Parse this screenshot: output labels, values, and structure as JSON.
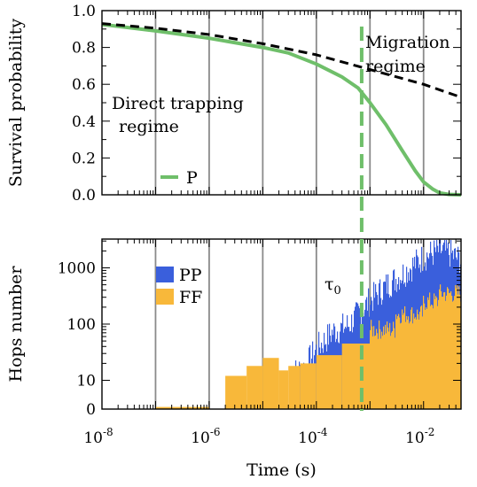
{
  "chart_data": [
    {
      "type": "line",
      "ylabel": "Survival probability",
      "xscale": "log",
      "xlim": [
        1e-08,
        0.05
      ],
      "ylim": [
        0,
        1
      ],
      "yticks": [
        "0.0",
        "0.2",
        "0.4",
        "0.6",
        "0.8",
        "1.0"
      ],
      "grid": "vertical lines at decades",
      "series": [
        {
          "name": "P",
          "color": "#6fbf6a",
          "style": "solid",
          "x": [
            1e-08,
            1e-07,
            1e-06,
            1e-05,
            3e-05,
            0.0001,
            0.0003,
            0.0006,
            0.001,
            0.002,
            0.004,
            0.007,
            0.01,
            0.015,
            0.02,
            0.03,
            0.05
          ],
          "y": [
            0.925,
            0.89,
            0.85,
            0.8,
            0.77,
            0.71,
            0.64,
            0.58,
            0.5,
            0.38,
            0.24,
            0.13,
            0.07,
            0.03,
            0.01,
            0.002,
            0.0
          ]
        },
        {
          "name": "",
          "color": "#000000",
          "style": "dashed",
          "x": [
            1e-08,
            1e-07,
            1e-06,
            1e-05,
            0.0001,
            0.001,
            0.01,
            0.05
          ],
          "y": [
            0.93,
            0.905,
            0.87,
            0.82,
            0.76,
            0.68,
            0.6,
            0.53
          ]
        }
      ],
      "legend": {
        "entries": [
          "P"
        ],
        "position": "bottom-left"
      },
      "annotations": {
        "direct_line1": "Direct trapping",
        "direct_line2": "regime",
        "migration_line1": "Migration",
        "migration_line2": "regime"
      }
    },
    {
      "type": "bar",
      "xlabel": "Time (s)",
      "ylabel": "Hops number",
      "xscale": "log",
      "yscale": "log",
      "xlim": [
        1e-08,
        0.05
      ],
      "ylim": [
        0,
        3000
      ],
      "xticks": [
        {
          "base": "10",
          "exp": "-8"
        },
        {
          "base": "10",
          "exp": "-6"
        },
        {
          "base": "10",
          "exp": "-4"
        },
        {
          "base": "10",
          "exp": "-2"
        }
      ],
      "yticks": [
        "0",
        "10",
        "100",
        "1000"
      ],
      "grid": "vertical lines at decades",
      "series": [
        {
          "name": "PP",
          "color": "#3a5fdc"
        },
        {
          "name": "FF",
          "color": "#f8b83a"
        }
      ],
      "ff_steps": [
        {
          "x0": 1e-07,
          "x1": 1e-06,
          "value": 0.3
        },
        {
          "x0": 1e-06,
          "x1": 2e-06,
          "value": 2
        },
        {
          "x0": 2e-06,
          "x1": 5e-06,
          "value": 12
        },
        {
          "x0": 5e-06,
          "x1": 1e-05,
          "value": 18
        },
        {
          "x0": 1e-05,
          "x1": 2e-05,
          "value": 25
        },
        {
          "x0": 2e-05,
          "x1": 3e-05,
          "value": 15
        },
        {
          "x0": 3e-05,
          "x1": 5e-05,
          "value": 18
        },
        {
          "x0": 5e-05,
          "x1": 0.0001,
          "value": 20
        },
        {
          "x0": 0.0001,
          "x1": 0.0003,
          "value": 28
        },
        {
          "x0": 0.0003,
          "x1": 0.001,
          "value": 45
        },
        {
          "x0": 0.001,
          "x1": 0.003,
          "value": 80
        },
        {
          "x0": 0.003,
          "x1": 0.01,
          "value": 150
        },
        {
          "x0": 0.01,
          "x1": 0.02,
          "value": 250
        },
        {
          "x0": 0.02,
          "x1": 0.05,
          "value": 350
        }
      ],
      "pp_envelope": [
        {
          "x": 3e-05,
          "value": 10
        },
        {
          "x": 6e-05,
          "value": 14
        },
        {
          "x": 0.0001,
          "value": 30
        },
        {
          "x": 0.0002,
          "value": 60
        },
        {
          "x": 0.0004,
          "value": 80
        },
        {
          "x": 0.0007,
          "value": 150
        },
        {
          "x": 0.001,
          "value": 220
        },
        {
          "x": 0.002,
          "value": 400
        },
        {
          "x": 0.004,
          "value": 650
        },
        {
          "x": 0.007,
          "value": 1000
        },
        {
          "x": 0.01,
          "value": 1300
        },
        {
          "x": 0.02,
          "value": 1700
        },
        {
          "x": 0.03,
          "value": 1500
        },
        {
          "x": 0.05,
          "value": 1100
        }
      ],
      "legend": {
        "entries": [
          "PP",
          "FF"
        ],
        "position": "top-left"
      },
      "annotations": {
        "tau_base": "τ",
        "tau_sub": "0"
      }
    }
  ],
  "tau0_marker": {
    "x": 0.0007,
    "color": "#6fbf6a",
    "style": "dashed",
    "span": "both panels"
  }
}
